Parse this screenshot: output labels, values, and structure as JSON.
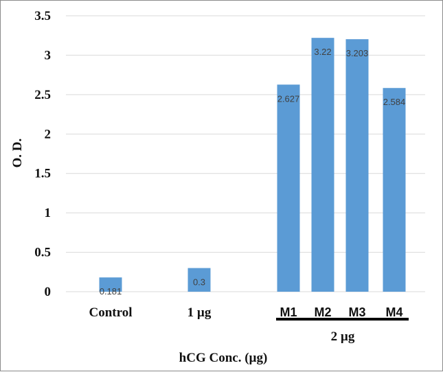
{
  "chart_data": {
    "type": "bar",
    "title": "",
    "xlabel": "hCG Conc. (µg)",
    "ylabel": "O. D.",
    "ylim": [
      0,
      3.5
    ],
    "yticks": [
      "0",
      "0.5",
      "1",
      "1.5",
      "2",
      "2.5",
      "3",
      "3.5"
    ],
    "grid": true,
    "bar_color": "#5b9bd5",
    "categories": [
      "Control",
      "1 µg",
      "M1",
      "M2",
      "M3",
      "M4"
    ],
    "values": [
      0.181,
      0.3,
      2.627,
      3.22,
      3.203,
      2.584
    ],
    "data_labels": [
      "0.181",
      "0.3",
      "2.627",
      "3.22",
      "3.203",
      "2.584"
    ],
    "group_label": "2 µg",
    "group_members": [
      "M1",
      "M2",
      "M3",
      "M4"
    ]
  }
}
